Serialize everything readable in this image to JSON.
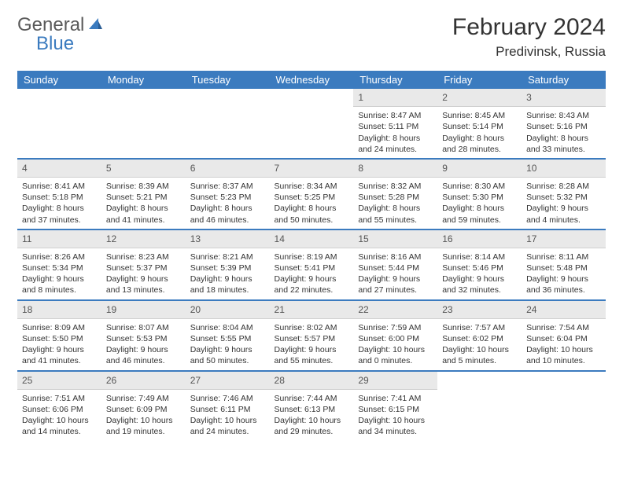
{
  "logo": {
    "text1": "General",
    "text2": "Blue"
  },
  "title": "February 2024",
  "location": "Predivinsk, Russia",
  "colors": {
    "header_bg": "#3b7bbf",
    "header_fg": "#ffffff",
    "daynum_bg": "#e9e9e9",
    "text": "#333333",
    "logo_gray": "#5a5a5a",
    "logo_blue": "#3b7bbf"
  },
  "weekdays": [
    "Sunday",
    "Monday",
    "Tuesday",
    "Wednesday",
    "Thursday",
    "Friday",
    "Saturday"
  ],
  "weeks": [
    [
      {
        "n": "",
        "sr": "",
        "ss": "",
        "dl": "",
        "empty": true
      },
      {
        "n": "",
        "sr": "",
        "ss": "",
        "dl": "",
        "empty": true
      },
      {
        "n": "",
        "sr": "",
        "ss": "",
        "dl": "",
        "empty": true
      },
      {
        "n": "",
        "sr": "",
        "ss": "",
        "dl": "",
        "empty": true
      },
      {
        "n": "1",
        "sr": "Sunrise: 8:47 AM",
        "ss": "Sunset: 5:11 PM",
        "dl": "Daylight: 8 hours and 24 minutes."
      },
      {
        "n": "2",
        "sr": "Sunrise: 8:45 AM",
        "ss": "Sunset: 5:14 PM",
        "dl": "Daylight: 8 hours and 28 minutes."
      },
      {
        "n": "3",
        "sr": "Sunrise: 8:43 AM",
        "ss": "Sunset: 5:16 PM",
        "dl": "Daylight: 8 hours and 33 minutes."
      }
    ],
    [
      {
        "n": "4",
        "sr": "Sunrise: 8:41 AM",
        "ss": "Sunset: 5:18 PM",
        "dl": "Daylight: 8 hours and 37 minutes."
      },
      {
        "n": "5",
        "sr": "Sunrise: 8:39 AM",
        "ss": "Sunset: 5:21 PM",
        "dl": "Daylight: 8 hours and 41 minutes."
      },
      {
        "n": "6",
        "sr": "Sunrise: 8:37 AM",
        "ss": "Sunset: 5:23 PM",
        "dl": "Daylight: 8 hours and 46 minutes."
      },
      {
        "n": "7",
        "sr": "Sunrise: 8:34 AM",
        "ss": "Sunset: 5:25 PM",
        "dl": "Daylight: 8 hours and 50 minutes."
      },
      {
        "n": "8",
        "sr": "Sunrise: 8:32 AM",
        "ss": "Sunset: 5:28 PM",
        "dl": "Daylight: 8 hours and 55 minutes."
      },
      {
        "n": "9",
        "sr": "Sunrise: 8:30 AM",
        "ss": "Sunset: 5:30 PM",
        "dl": "Daylight: 8 hours and 59 minutes."
      },
      {
        "n": "10",
        "sr": "Sunrise: 8:28 AM",
        "ss": "Sunset: 5:32 PM",
        "dl": "Daylight: 9 hours and 4 minutes."
      }
    ],
    [
      {
        "n": "11",
        "sr": "Sunrise: 8:26 AM",
        "ss": "Sunset: 5:34 PM",
        "dl": "Daylight: 9 hours and 8 minutes."
      },
      {
        "n": "12",
        "sr": "Sunrise: 8:23 AM",
        "ss": "Sunset: 5:37 PM",
        "dl": "Daylight: 9 hours and 13 minutes."
      },
      {
        "n": "13",
        "sr": "Sunrise: 8:21 AM",
        "ss": "Sunset: 5:39 PM",
        "dl": "Daylight: 9 hours and 18 minutes."
      },
      {
        "n": "14",
        "sr": "Sunrise: 8:19 AM",
        "ss": "Sunset: 5:41 PM",
        "dl": "Daylight: 9 hours and 22 minutes."
      },
      {
        "n": "15",
        "sr": "Sunrise: 8:16 AM",
        "ss": "Sunset: 5:44 PM",
        "dl": "Daylight: 9 hours and 27 minutes."
      },
      {
        "n": "16",
        "sr": "Sunrise: 8:14 AM",
        "ss": "Sunset: 5:46 PM",
        "dl": "Daylight: 9 hours and 32 minutes."
      },
      {
        "n": "17",
        "sr": "Sunrise: 8:11 AM",
        "ss": "Sunset: 5:48 PM",
        "dl": "Daylight: 9 hours and 36 minutes."
      }
    ],
    [
      {
        "n": "18",
        "sr": "Sunrise: 8:09 AM",
        "ss": "Sunset: 5:50 PM",
        "dl": "Daylight: 9 hours and 41 minutes."
      },
      {
        "n": "19",
        "sr": "Sunrise: 8:07 AM",
        "ss": "Sunset: 5:53 PM",
        "dl": "Daylight: 9 hours and 46 minutes."
      },
      {
        "n": "20",
        "sr": "Sunrise: 8:04 AM",
        "ss": "Sunset: 5:55 PM",
        "dl": "Daylight: 9 hours and 50 minutes."
      },
      {
        "n": "21",
        "sr": "Sunrise: 8:02 AM",
        "ss": "Sunset: 5:57 PM",
        "dl": "Daylight: 9 hours and 55 minutes."
      },
      {
        "n": "22",
        "sr": "Sunrise: 7:59 AM",
        "ss": "Sunset: 6:00 PM",
        "dl": "Daylight: 10 hours and 0 minutes."
      },
      {
        "n": "23",
        "sr": "Sunrise: 7:57 AM",
        "ss": "Sunset: 6:02 PM",
        "dl": "Daylight: 10 hours and 5 minutes."
      },
      {
        "n": "24",
        "sr": "Sunrise: 7:54 AM",
        "ss": "Sunset: 6:04 PM",
        "dl": "Daylight: 10 hours and 10 minutes."
      }
    ],
    [
      {
        "n": "25",
        "sr": "Sunrise: 7:51 AM",
        "ss": "Sunset: 6:06 PM",
        "dl": "Daylight: 10 hours and 14 minutes."
      },
      {
        "n": "26",
        "sr": "Sunrise: 7:49 AM",
        "ss": "Sunset: 6:09 PM",
        "dl": "Daylight: 10 hours and 19 minutes."
      },
      {
        "n": "27",
        "sr": "Sunrise: 7:46 AM",
        "ss": "Sunset: 6:11 PM",
        "dl": "Daylight: 10 hours and 24 minutes."
      },
      {
        "n": "28",
        "sr": "Sunrise: 7:44 AM",
        "ss": "Sunset: 6:13 PM",
        "dl": "Daylight: 10 hours and 29 minutes."
      },
      {
        "n": "29",
        "sr": "Sunrise: 7:41 AM",
        "ss": "Sunset: 6:15 PM",
        "dl": "Daylight: 10 hours and 34 minutes."
      },
      {
        "n": "",
        "sr": "",
        "ss": "",
        "dl": "",
        "empty": true
      },
      {
        "n": "",
        "sr": "",
        "ss": "",
        "dl": "",
        "empty": true
      }
    ]
  ]
}
